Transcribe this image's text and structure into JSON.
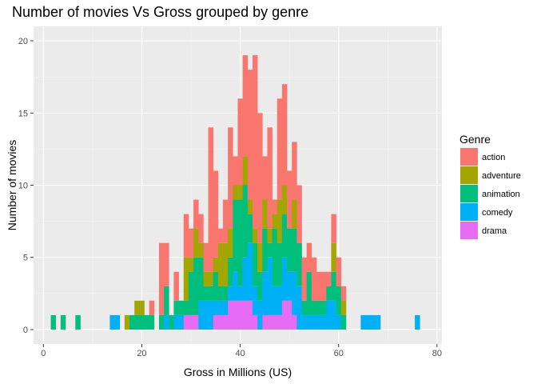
{
  "chart_data": {
    "type": "bar",
    "stacked": true,
    "title": "Number of movies Vs Gross grouped by genre",
    "xlabel": "Gross in Millions (US)",
    "ylabel": "Number of movies",
    "xlim": [
      -2,
      81
    ],
    "ylim": [
      -1,
      21
    ],
    "xticks": [
      0,
      20,
      40,
      60,
      80
    ],
    "yticks": [
      0,
      5,
      10,
      15,
      20
    ],
    "bin_width": 1,
    "x_start": 2,
    "legend": {
      "title": "Genre",
      "position": "right"
    },
    "grid": true,
    "series": [
      {
        "name": "drama",
        "color": "#E76BF3",
        "values": [
          0,
          0,
          0,
          0,
          0,
          0,
          0,
          0,
          0,
          0,
          0,
          0,
          0,
          0,
          0,
          0,
          0,
          0,
          0,
          0,
          0,
          0,
          0,
          0,
          0,
          0,
          0,
          1,
          1,
          1,
          0,
          0,
          0,
          1,
          1,
          1,
          2,
          2,
          2,
          2,
          2,
          1,
          0,
          1,
          1,
          1,
          1,
          2,
          2,
          1,
          0,
          0,
          0,
          0,
          0,
          0,
          0,
          0,
          0,
          0,
          0,
          0,
          0,
          0,
          0,
          0,
          0,
          0,
          0,
          0,
          0,
          0,
          0,
          0,
          0,
          0,
          0
        ]
      },
      {
        "name": "comedy",
        "color": "#00B0F6",
        "values": [
          0,
          0,
          0,
          0,
          0,
          0,
          0,
          0,
          0,
          0,
          0,
          0,
          1,
          1,
          0,
          0,
          0,
          0,
          0,
          0,
          0,
          0,
          0,
          1,
          0,
          1,
          1,
          0,
          0,
          0,
          2,
          2,
          2,
          1,
          1,
          1,
          1,
          2,
          1,
          3,
          4,
          2,
          2,
          3,
          4,
          2,
          2,
          3,
          2,
          3,
          3,
          1,
          1,
          1,
          1,
          1,
          2,
          2,
          1,
          0,
          0,
          0,
          0,
          1,
          1,
          1,
          1,
          0,
          0,
          0,
          0,
          0,
          0,
          0,
          1,
          0,
          0
        ]
      },
      {
        "name": "animation",
        "color": "#00BF7D",
        "values": [
          1,
          0,
          1,
          0,
          0,
          1,
          0,
          0,
          0,
          0,
          0,
          0,
          0,
          0,
          0,
          0,
          1,
          1,
          1,
          1,
          1,
          0,
          1,
          2,
          1,
          1,
          1,
          1,
          3,
          4,
          3,
          1,
          1,
          2,
          1,
          1,
          2,
          5,
          6,
          5,
          2,
          3,
          2,
          3,
          1,
          4,
          3,
          3,
          3,
          3,
          3,
          1,
          3,
          1,
          1,
          1,
          1,
          2,
          2,
          1,
          0,
          0,
          0,
          0,
          0,
          0,
          0,
          0,
          0,
          0,
          0,
          0,
          0,
          0,
          0,
          0,
          0
        ]
      },
      {
        "name": "adventure",
        "color": "#A3A500",
        "values": [
          0,
          0,
          0,
          0,
          0,
          0,
          0,
          0,
          0,
          0,
          0,
          0,
          0,
          0,
          0,
          1,
          0,
          1,
          1,
          0,
          0,
          0,
          0,
          0,
          0,
          0,
          0,
          3,
          1,
          2,
          1,
          1,
          1,
          1,
          3,
          3,
          2,
          1,
          1,
          2,
          1,
          1,
          2,
          2,
          1,
          1,
          3,
          2,
          0,
          2,
          0,
          0,
          0,
          0,
          0,
          0,
          0,
          2,
          0,
          1,
          0,
          0,
          0,
          0,
          0,
          0,
          0,
          0,
          0,
          0,
          0,
          0,
          0,
          0,
          0,
          0,
          0
        ]
      },
      {
        "name": "action",
        "color": "#F8766D",
        "values": [
          0,
          0,
          0,
          0,
          0,
          0,
          0,
          0,
          0,
          0,
          0,
          0,
          0,
          0,
          0,
          0,
          0,
          0,
          0,
          0,
          1,
          0,
          5,
          3,
          0,
          2,
          0,
          3,
          2,
          2,
          2,
          2,
          10,
          6,
          1,
          3,
          7,
          2,
          6,
          7,
          9,
          12,
          9,
          3,
          7,
          1,
          7,
          7,
          4,
          4,
          4,
          3,
          2,
          3,
          2,
          2,
          1,
          2,
          2,
          1,
          0,
          0,
          0,
          0,
          0,
          0,
          0,
          0,
          0,
          0,
          0,
          0,
          0,
          0,
          0,
          0,
          0
        ]
      }
    ]
  }
}
